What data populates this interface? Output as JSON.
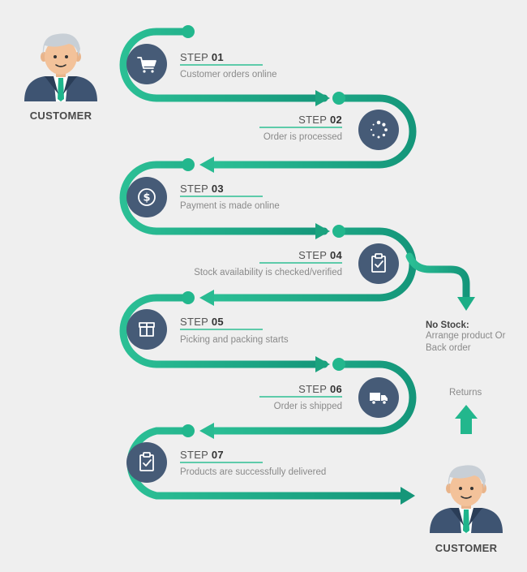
{
  "steps": [
    {
      "prefix": "STEP",
      "num": "01",
      "desc": "Customer orders online",
      "icon": "cart-icon"
    },
    {
      "prefix": "STEP",
      "num": "02",
      "desc": "Order is processed",
      "icon": "loading-icon"
    },
    {
      "prefix": "STEP",
      "num": "03",
      "desc": "Payment is made online",
      "icon": "dollar-icon"
    },
    {
      "prefix": "STEP",
      "num": "04",
      "desc": "Stock availability is checked/verified",
      "icon": "clipboard-check-icon"
    },
    {
      "prefix": "STEP",
      "num": "05",
      "desc": "Picking and packing starts",
      "icon": "box-icon"
    },
    {
      "prefix": "STEP",
      "num": "06",
      "desc": "Order is shipped",
      "icon": "truck-icon"
    },
    {
      "prefix": "STEP",
      "num": "07",
      "desc": "Products are successfully delivered",
      "icon": "clipboard-check-icon"
    }
  ],
  "customer_top": {
    "label": "CUSTOMER"
  },
  "customer_bottom": {
    "label": "CUSTOMER"
  },
  "no_stock": {
    "title": "No Stock:",
    "line1": "Arrange product Or",
    "line2": "Back order"
  },
  "returns": {
    "label": "Returns"
  },
  "colors": {
    "path_start": "#2bbf95",
    "path_end": "#15987a",
    "icon_circle": "#465b77",
    "underline": "#2fbf93",
    "arrow": "#1fb58c"
  }
}
